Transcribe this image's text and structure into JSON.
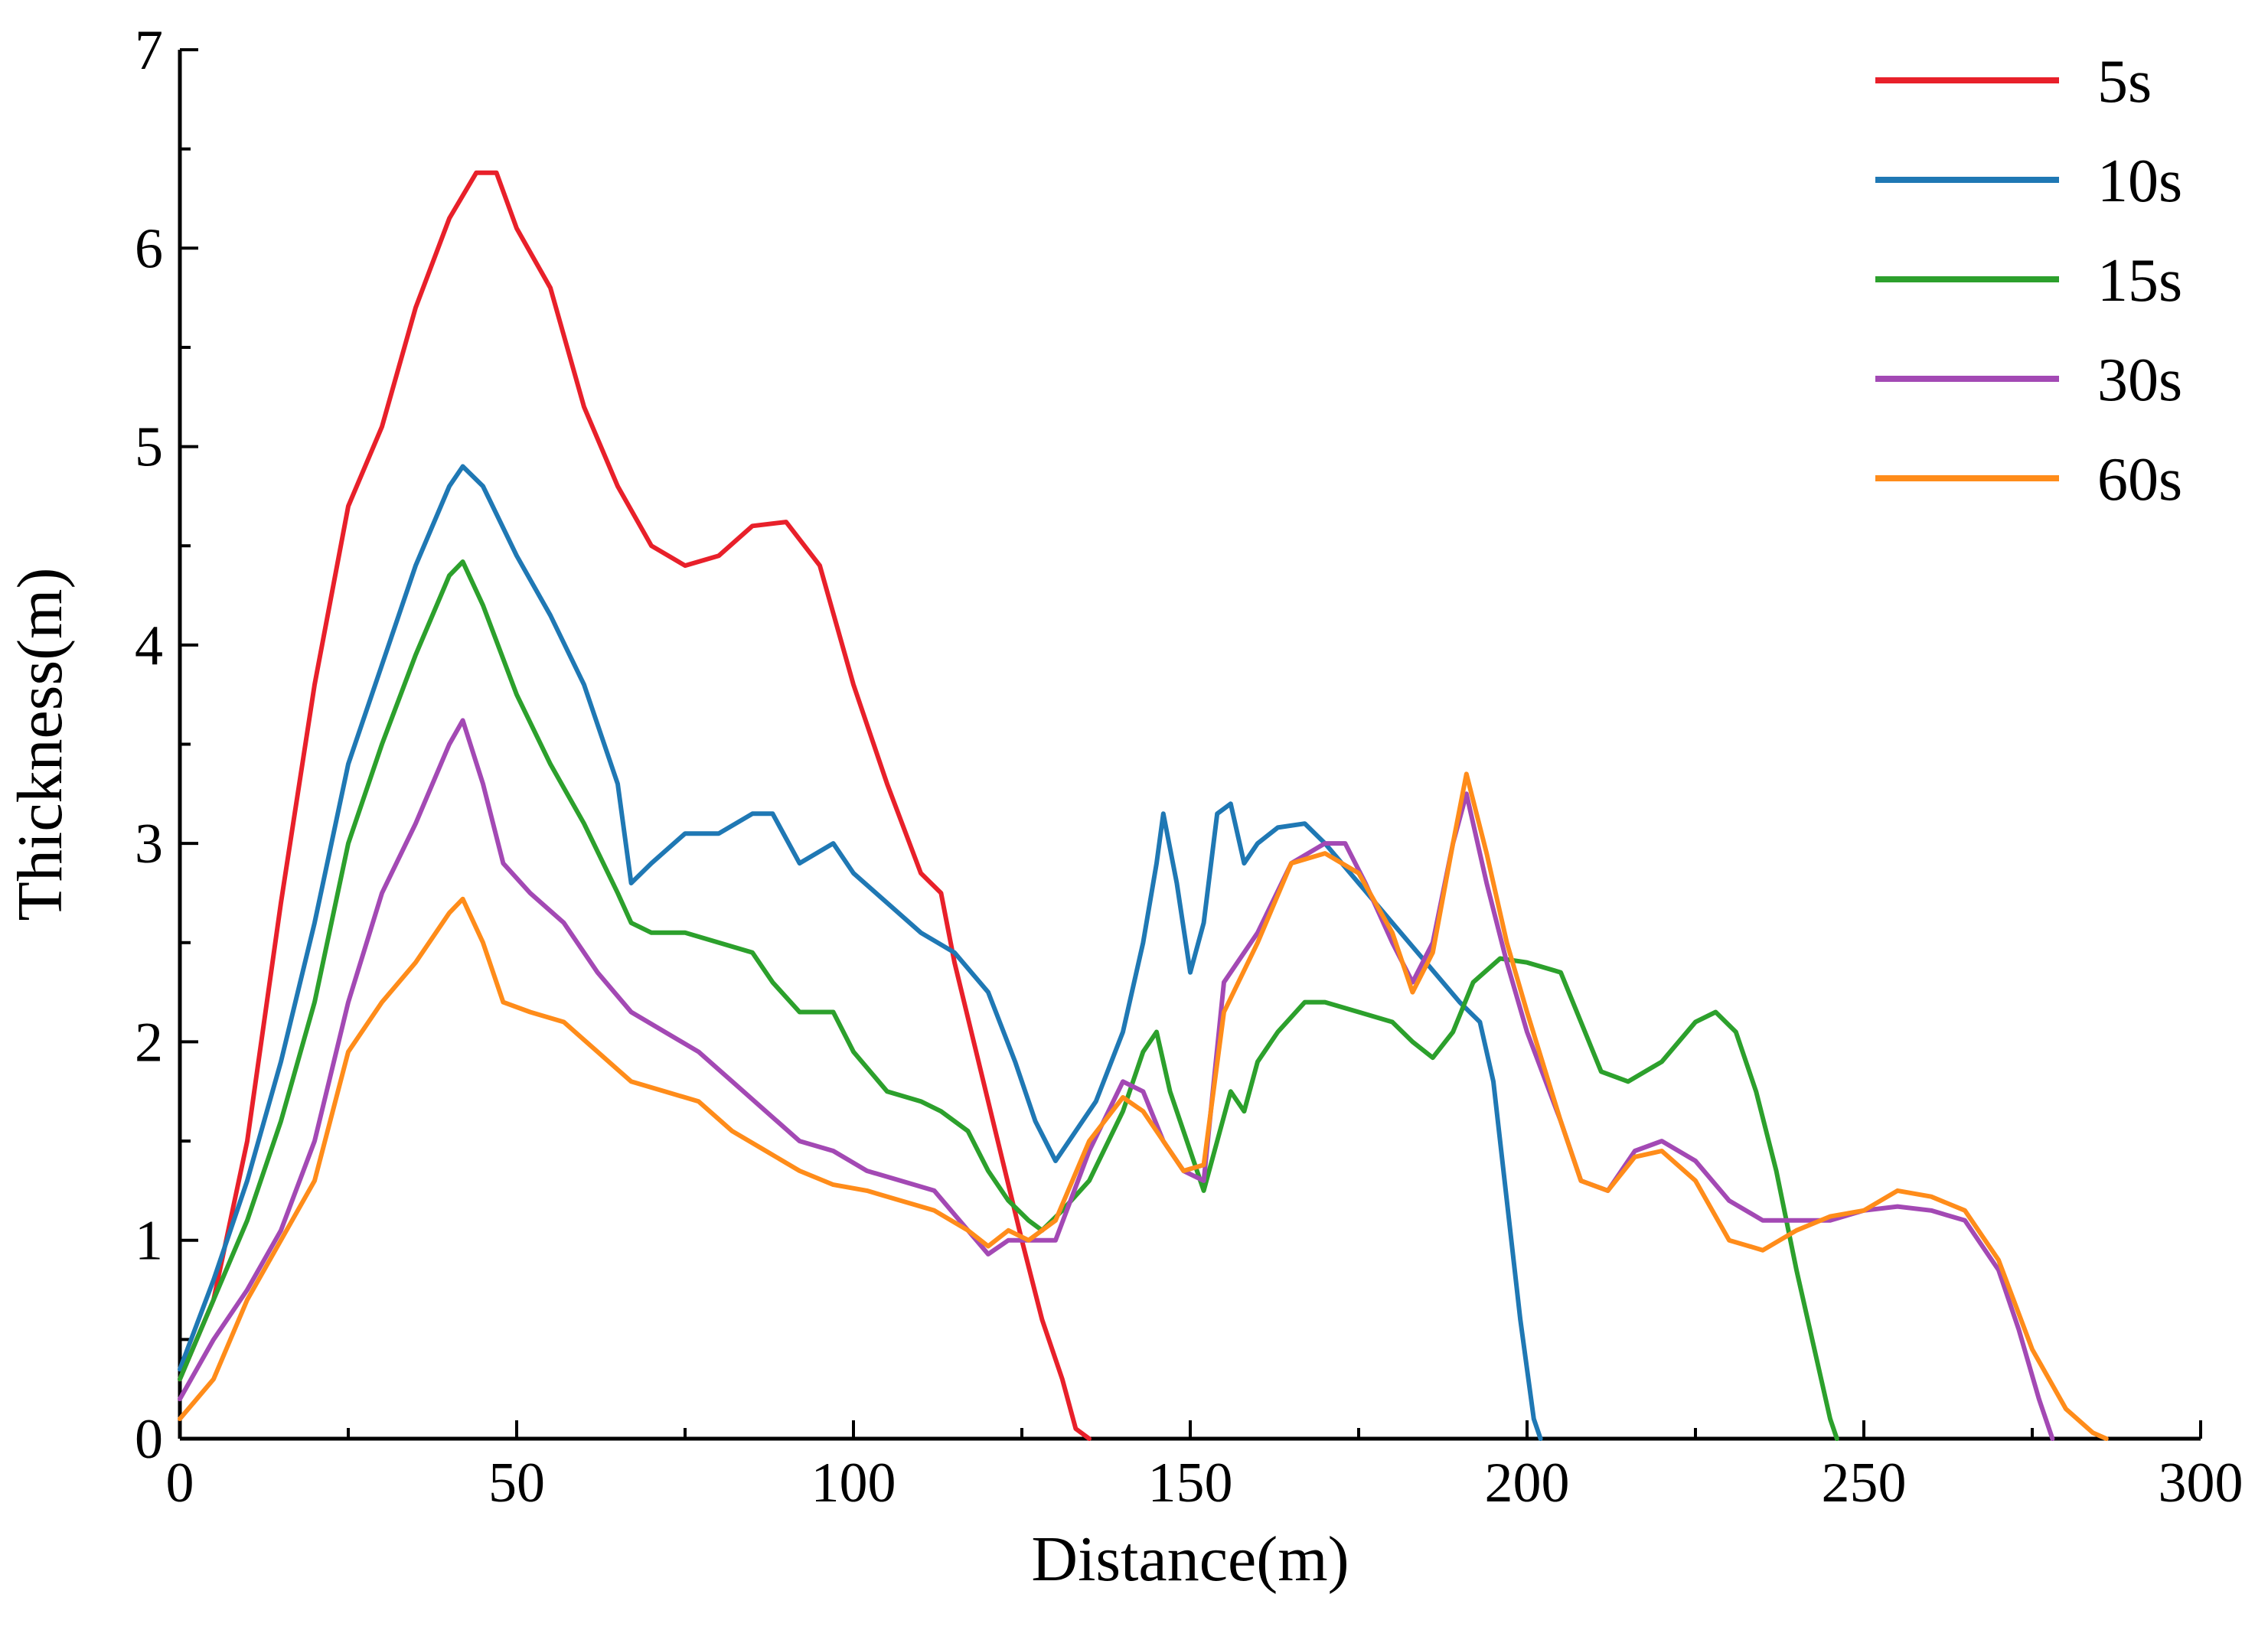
{
  "chart_data": {
    "type": "line",
    "title": "",
    "xlabel": "Distance(m)",
    "ylabel": "Thickness(m)",
    "xlim": [
      0,
      300
    ],
    "ylim": [
      0,
      7
    ],
    "xticks": [
      0,
      50,
      100,
      150,
      200,
      250,
      300
    ],
    "yticks": [
      0,
      1,
      2,
      3,
      4,
      5,
      6,
      7
    ],
    "grid": false,
    "legend_position": "top-right",
    "series": [
      {
        "name": "5s",
        "color": "#e8202a",
        "points": [
          [
            0,
            0.3
          ],
          [
            5,
            0.7
          ],
          [
            10,
            1.5
          ],
          [
            15,
            2.7
          ],
          [
            20,
            3.8
          ],
          [
            25,
            4.7
          ],
          [
            30,
            5.1
          ],
          [
            35,
            5.7
          ],
          [
            40,
            6.15
          ],
          [
            44,
            6.38
          ],
          [
            47,
            6.38
          ],
          [
            50,
            6.1
          ],
          [
            55,
            5.8
          ],
          [
            60,
            5.2
          ],
          [
            65,
            4.8
          ],
          [
            70,
            4.5
          ],
          [
            75,
            4.4
          ],
          [
            80,
            4.45
          ],
          [
            85,
            4.6
          ],
          [
            90,
            4.62
          ],
          [
            95,
            4.4
          ],
          [
            100,
            3.8
          ],
          [
            105,
            3.3
          ],
          [
            110,
            2.85
          ],
          [
            113,
            2.75
          ],
          [
            115,
            2.4
          ],
          [
            120,
            1.7
          ],
          [
            125,
            1.0
          ],
          [
            128,
            0.6
          ],
          [
            131,
            0.3
          ],
          [
            133,
            0.05
          ],
          [
            135,
            0.0
          ]
        ]
      },
      {
        "name": "10s",
        "color": "#1f78b4",
        "points": [
          [
            0,
            0.35
          ],
          [
            5,
            0.8
          ],
          [
            10,
            1.3
          ],
          [
            15,
            1.9
          ],
          [
            20,
            2.6
          ],
          [
            25,
            3.4
          ],
          [
            30,
            3.9
          ],
          [
            35,
            4.4
          ],
          [
            40,
            4.8
          ],
          [
            42,
            4.9
          ],
          [
            45,
            4.8
          ],
          [
            50,
            4.45
          ],
          [
            55,
            4.15
          ],
          [
            60,
            3.8
          ],
          [
            65,
            3.3
          ],
          [
            67,
            2.8
          ],
          [
            70,
            2.9
          ],
          [
            75,
            3.05
          ],
          [
            80,
            3.05
          ],
          [
            85,
            3.15
          ],
          [
            88,
            3.15
          ],
          [
            92,
            2.9
          ],
          [
            97,
            3.0
          ],
          [
            100,
            2.85
          ],
          [
            105,
            2.7
          ],
          [
            110,
            2.55
          ],
          [
            115,
            2.45
          ],
          [
            120,
            2.25
          ],
          [
            124,
            1.9
          ],
          [
            127,
            1.6
          ],
          [
            130,
            1.4
          ],
          [
            133,
            1.55
          ],
          [
            136,
            1.7
          ],
          [
            140,
            2.05
          ],
          [
            143,
            2.5
          ],
          [
            145,
            2.9
          ],
          [
            146,
            3.15
          ],
          [
            148,
            2.8
          ],
          [
            150,
            2.35
          ],
          [
            152,
            2.6
          ],
          [
            154,
            3.15
          ],
          [
            156,
            3.2
          ],
          [
            158,
            2.9
          ],
          [
            160,
            3.0
          ],
          [
            163,
            3.08
          ],
          [
            167,
            3.1
          ],
          [
            170,
            3.0
          ],
          [
            175,
            2.8
          ],
          [
            180,
            2.6
          ],
          [
            185,
            2.4
          ],
          [
            190,
            2.2
          ],
          [
            193,
            2.1
          ],
          [
            195,
            1.8
          ],
          [
            197,
            1.2
          ],
          [
            199,
            0.6
          ],
          [
            201,
            0.1
          ],
          [
            202,
            0.0
          ]
        ]
      },
      {
        "name": "15s",
        "color": "#2ca02c",
        "points": [
          [
            0,
            0.3
          ],
          [
            5,
            0.7
          ],
          [
            10,
            1.1
          ],
          [
            15,
            1.6
          ],
          [
            20,
            2.2
          ],
          [
            25,
            3.0
          ],
          [
            30,
            3.5
          ],
          [
            35,
            3.95
          ],
          [
            40,
            4.35
          ],
          [
            42,
            4.42
          ],
          [
            45,
            4.2
          ],
          [
            50,
            3.75
          ],
          [
            55,
            3.4
          ],
          [
            60,
            3.1
          ],
          [
            65,
            2.75
          ],
          [
            67,
            2.6
          ],
          [
            70,
            2.55
          ],
          [
            75,
            2.55
          ],
          [
            80,
            2.5
          ],
          [
            85,
            2.45
          ],
          [
            88,
            2.3
          ],
          [
            92,
            2.15
          ],
          [
            97,
            2.15
          ],
          [
            100,
            1.95
          ],
          [
            105,
            1.75
          ],
          [
            110,
            1.7
          ],
          [
            113,
            1.65
          ],
          [
            117,
            1.55
          ],
          [
            120,
            1.35
          ],
          [
            123,
            1.2
          ],
          [
            126,
            1.1
          ],
          [
            128,
            1.05
          ],
          [
            131,
            1.15
          ],
          [
            135,
            1.3
          ],
          [
            140,
            1.65
          ],
          [
            143,
            1.95
          ],
          [
            145,
            2.05
          ],
          [
            147,
            1.75
          ],
          [
            150,
            1.45
          ],
          [
            152,
            1.25
          ],
          [
            154,
            1.5
          ],
          [
            156,
            1.75
          ],
          [
            158,
            1.65
          ],
          [
            160,
            1.9
          ],
          [
            163,
            2.05
          ],
          [
            167,
            2.2
          ],
          [
            170,
            2.2
          ],
          [
            175,
            2.15
          ],
          [
            180,
            2.1
          ],
          [
            183,
            2.0
          ],
          [
            186,
            1.92
          ],
          [
            189,
            2.05
          ],
          [
            192,
            2.3
          ],
          [
            196,
            2.42
          ],
          [
            200,
            2.4
          ],
          [
            205,
            2.35
          ],
          [
            208,
            2.1
          ],
          [
            211,
            1.85
          ],
          [
            215,
            1.8
          ],
          [
            220,
            1.9
          ],
          [
            225,
            2.1
          ],
          [
            228,
            2.15
          ],
          [
            231,
            2.05
          ],
          [
            234,
            1.75
          ],
          [
            237,
            1.35
          ],
          [
            240,
            0.85
          ],
          [
            243,
            0.4
          ],
          [
            245,
            0.1
          ],
          [
            246,
            0.0
          ]
        ]
      },
      {
        "name": "30s",
        "color": "#a349b4",
        "points": [
          [
            0,
            0.2
          ],
          [
            5,
            0.5
          ],
          [
            10,
            0.75
          ],
          [
            15,
            1.05
          ],
          [
            20,
            1.5
          ],
          [
            25,
            2.2
          ],
          [
            30,
            2.75
          ],
          [
            35,
            3.1
          ],
          [
            40,
            3.5
          ],
          [
            42,
            3.62
          ],
          [
            45,
            3.3
          ],
          [
            48,
            2.9
          ],
          [
            52,
            2.75
          ],
          [
            57,
            2.6
          ],
          [
            62,
            2.35
          ],
          [
            67,
            2.15
          ],
          [
            72,
            2.05
          ],
          [
            77,
            1.95
          ],
          [
            82,
            1.8
          ],
          [
            87,
            1.65
          ],
          [
            92,
            1.5
          ],
          [
            97,
            1.45
          ],
          [
            102,
            1.35
          ],
          [
            107,
            1.3
          ],
          [
            112,
            1.25
          ],
          [
            117,
            1.05
          ],
          [
            120,
            0.93
          ],
          [
            123,
            1.0
          ],
          [
            126,
            1.0
          ],
          [
            130,
            1.0
          ],
          [
            135,
            1.45
          ],
          [
            140,
            1.8
          ],
          [
            143,
            1.75
          ],
          [
            146,
            1.5
          ],
          [
            149,
            1.35
          ],
          [
            152,
            1.3
          ],
          [
            155,
            2.3
          ],
          [
            160,
            2.55
          ],
          [
            165,
            2.9
          ],
          [
            170,
            3.0
          ],
          [
            173,
            3.0
          ],
          [
            176,
            2.8
          ],
          [
            180,
            2.5
          ],
          [
            183,
            2.3
          ],
          [
            186,
            2.5
          ],
          [
            189,
            3.0
          ],
          [
            191,
            3.25
          ],
          [
            194,
            2.8
          ],
          [
            197,
            2.4
          ],
          [
            200,
            2.05
          ],
          [
            205,
            1.6
          ],
          [
            208,
            1.3
          ],
          [
            212,
            1.25
          ],
          [
            216,
            1.45
          ],
          [
            220,
            1.5
          ],
          [
            225,
            1.4
          ],
          [
            230,
            1.2
          ],
          [
            235,
            1.1
          ],
          [
            240,
            1.1
          ],
          [
            245,
            1.1
          ],
          [
            250,
            1.15
          ],
          [
            255,
            1.17
          ],
          [
            260,
            1.15
          ],
          [
            265,
            1.1
          ],
          [
            270,
            0.85
          ],
          [
            273,
            0.55
          ],
          [
            276,
            0.2
          ],
          [
            278,
            0.0
          ]
        ]
      },
      {
        "name": "60s",
        "color": "#ff8c1a",
        "points": [
          [
            0,
            0.1
          ],
          [
            5,
            0.3
          ],
          [
            10,
            0.7
          ],
          [
            15,
            1.0
          ],
          [
            20,
            1.3
          ],
          [
            25,
            1.95
          ],
          [
            30,
            2.2
          ],
          [
            35,
            2.4
          ],
          [
            40,
            2.65
          ],
          [
            42,
            2.72
          ],
          [
            45,
            2.5
          ],
          [
            48,
            2.2
          ],
          [
            52,
            2.15
          ],
          [
            57,
            2.1
          ],
          [
            62,
            1.95
          ],
          [
            67,
            1.8
          ],
          [
            72,
            1.75
          ],
          [
            77,
            1.7
          ],
          [
            82,
            1.55
          ],
          [
            87,
            1.45
          ],
          [
            92,
            1.35
          ],
          [
            97,
            1.28
          ],
          [
            102,
            1.25
          ],
          [
            107,
            1.2
          ],
          [
            112,
            1.15
          ],
          [
            117,
            1.05
          ],
          [
            120,
            0.97
          ],
          [
            123,
            1.05
          ],
          [
            126,
            1.0
          ],
          [
            130,
            1.1
          ],
          [
            135,
            1.5
          ],
          [
            140,
            1.72
          ],
          [
            143,
            1.65
          ],
          [
            146,
            1.5
          ],
          [
            149,
            1.35
          ],
          [
            152,
            1.38
          ],
          [
            155,
            2.15
          ],
          [
            160,
            2.5
          ],
          [
            165,
            2.9
          ],
          [
            170,
            2.95
          ],
          [
            175,
            2.85
          ],
          [
            180,
            2.55
          ],
          [
            183,
            2.25
          ],
          [
            186,
            2.45
          ],
          [
            189,
            3.0
          ],
          [
            191,
            3.35
          ],
          [
            194,
            2.95
          ],
          [
            197,
            2.5
          ],
          [
            200,
            2.15
          ],
          [
            205,
            1.6
          ],
          [
            208,
            1.3
          ],
          [
            212,
            1.25
          ],
          [
            216,
            1.42
          ],
          [
            220,
            1.45
          ],
          [
            225,
            1.3
          ],
          [
            230,
            1.0
          ],
          [
            235,
            0.95
          ],
          [
            240,
            1.05
          ],
          [
            245,
            1.12
          ],
          [
            250,
            1.15
          ],
          [
            255,
            1.25
          ],
          [
            260,
            1.22
          ],
          [
            265,
            1.15
          ],
          [
            270,
            0.9
          ],
          [
            275,
            0.45
          ],
          [
            280,
            0.15
          ],
          [
            284,
            0.03
          ],
          [
            286,
            0.0
          ]
        ]
      }
    ]
  }
}
